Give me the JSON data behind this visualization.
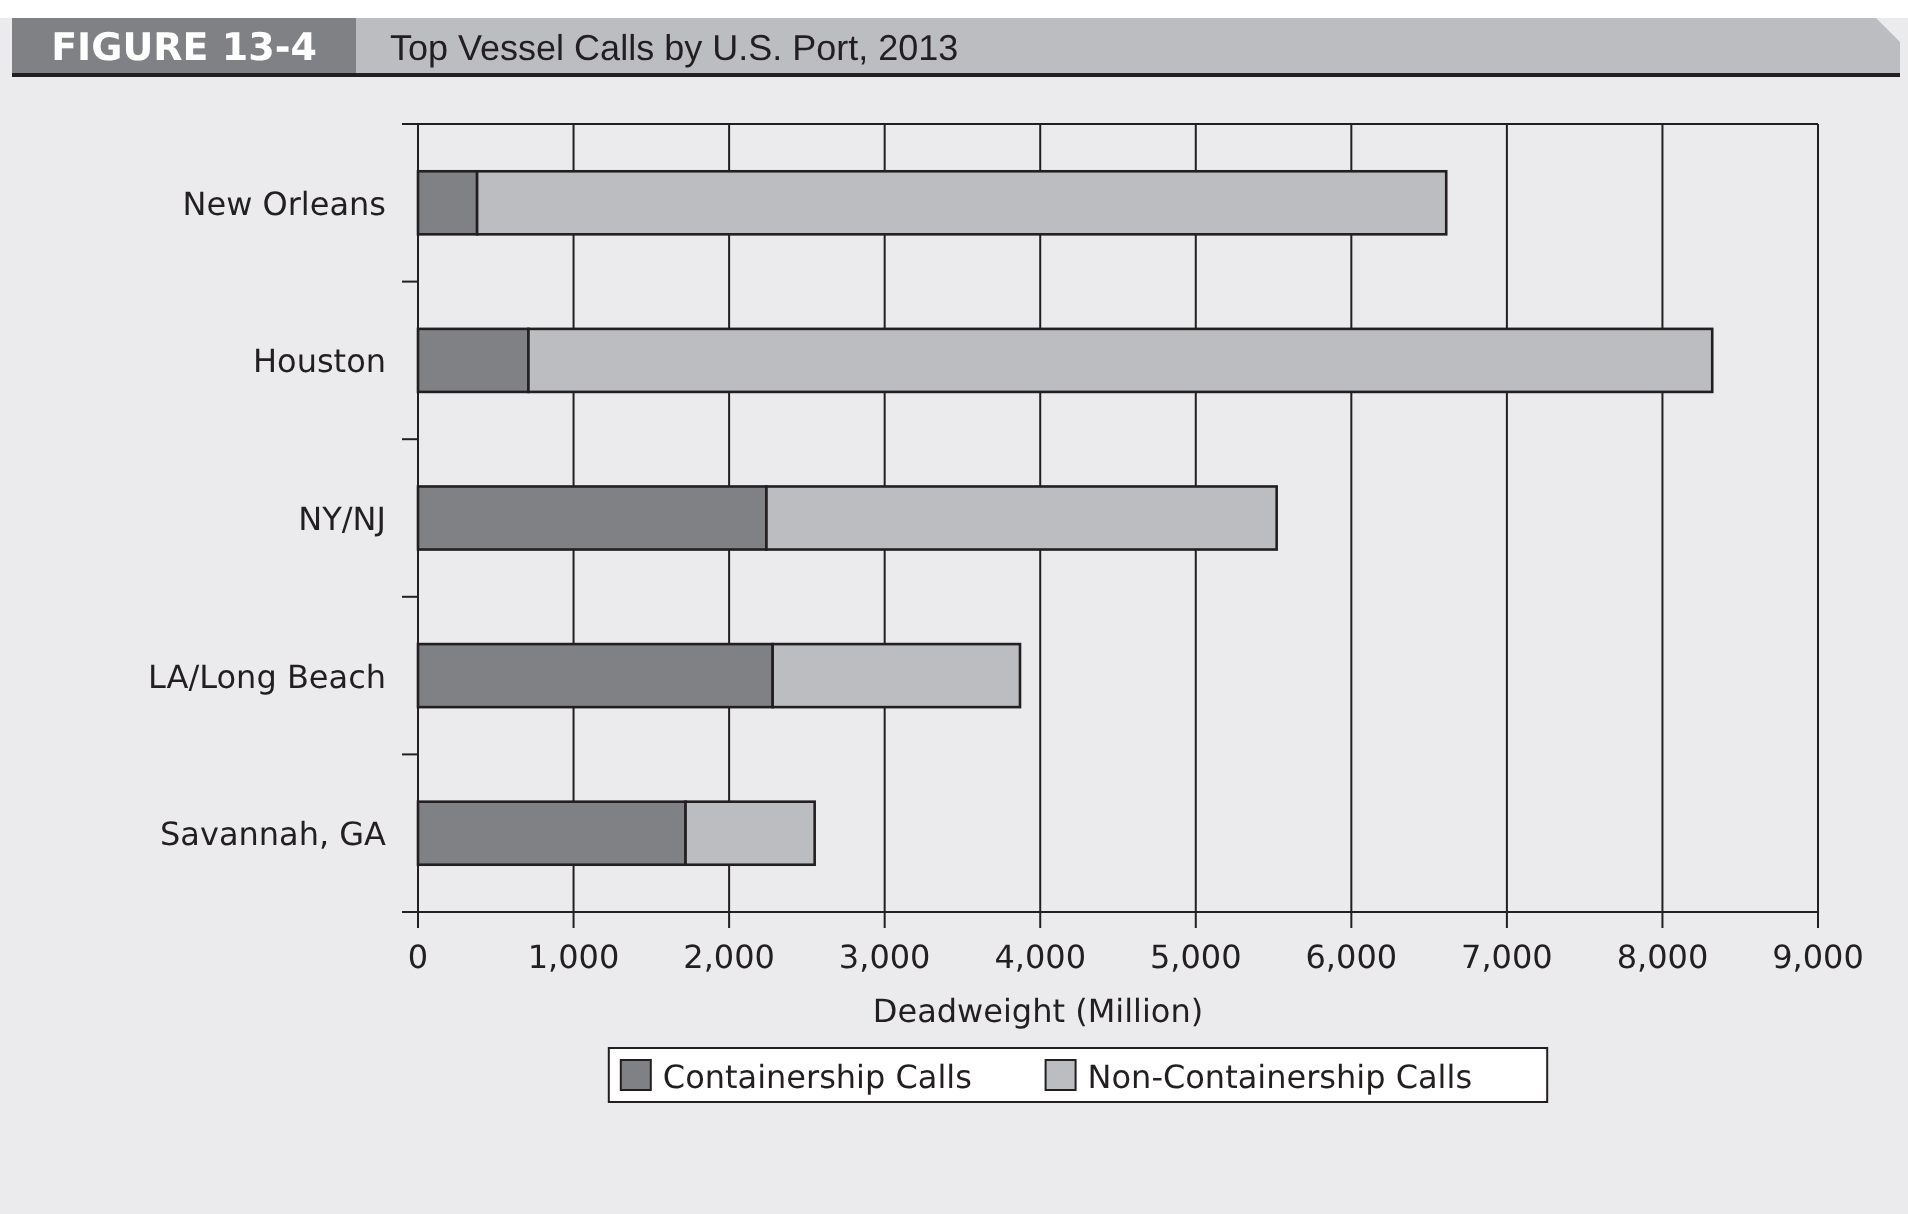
{
  "chart_data": {
    "type": "bar",
    "orientation": "horizontal",
    "stacked": true,
    "title": "Top Vessel Calls by U.S. Port, 2013",
    "annotations": [
      "FIGURE 13-4"
    ],
    "xlabel": "Deadweight (Million)",
    "categories": [
      "New Orleans",
      "Houston",
      "NY/NJ",
      "LA/Long Beach",
      "Savannah, GA"
    ],
    "series": [
      {
        "name": "Containership Calls",
        "color": "#808184",
        "values": [
          380,
          710,
          2240,
          2280,
          1720
        ]
      },
      {
        "name": "Non-Containership Calls",
        "color": "#bcbdc0",
        "values": [
          6230,
          7610,
          3280,
          1590,
          830
        ]
      }
    ],
    "xlim": [
      0,
      9000
    ],
    "xticks": [
      {
        "value": 0,
        "label": "0"
      },
      {
        "value": 1000,
        "label": "1,000"
      },
      {
        "value": 2000,
        "label": "2,000"
      },
      {
        "value": 3000,
        "label": "3,000"
      },
      {
        "value": 4000,
        "label": "4,000"
      },
      {
        "value": 5000,
        "label": "5,000"
      },
      {
        "value": 6000,
        "label": "6,000"
      },
      {
        "value": 7000,
        "label": "7,000"
      },
      {
        "value": 8000,
        "label": "8,000"
      },
      {
        "value": 9000,
        "label": "9,000"
      }
    ],
    "grid": "x",
    "legend": "bottom"
  }
}
